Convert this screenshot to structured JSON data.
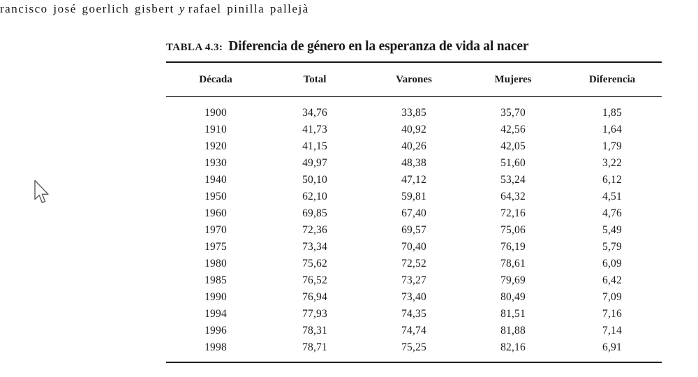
{
  "page": {
    "header": {
      "author_left": "rancisco josé goerlich gisbert",
      "separator": "y",
      "author_right": "rafael pinilla pallejà"
    }
  },
  "table": {
    "label": "TABLA 4.3:",
    "title": "Diferencia de género en la esperanza de vida al nacer",
    "columns": [
      "Década",
      "Total",
      "Varones",
      "Mujeres",
      "Diferencia"
    ],
    "rows": [
      [
        "1900",
        "34,76",
        "33,85",
        "35,70",
        "1,85"
      ],
      [
        "1910",
        "41,73",
        "40,92",
        "42,56",
        "1,64"
      ],
      [
        "1920",
        "41,15",
        "40,26",
        "42,05",
        "1,79"
      ],
      [
        "1930",
        "49,97",
        "48,38",
        "51,60",
        "3,22"
      ],
      [
        "1940",
        "50,10",
        "47,12",
        "53,24",
        "6,12"
      ],
      [
        "1950",
        "62,10",
        "59,81",
        "64,32",
        "4,51"
      ],
      [
        "1960",
        "69,85",
        "67,40",
        "72,16",
        "4,76"
      ],
      [
        "1970",
        "72,36",
        "69,57",
        "75,06",
        "5,49"
      ],
      [
        "1975",
        "73,34",
        "70,40",
        "76,19",
        "5,79"
      ],
      [
        "1980",
        "75,62",
        "72,52",
        "78,61",
        "6,09"
      ],
      [
        "1985",
        "76,52",
        "73,27",
        "79,69",
        "6,42"
      ],
      [
        "1990",
        "76,94",
        "73,40",
        "80,49",
        "7,09"
      ],
      [
        "1994",
        "77,93",
        "74,35",
        "81,51",
        "7,16"
      ],
      [
        "1996",
        "78,31",
        "74,74",
        "81,88",
        "7,14"
      ],
      [
        "1998",
        "78,71",
        "75,25",
        "82,16",
        "6,91"
      ]
    ]
  },
  "cursor": {
    "type": "arrow-pointer"
  },
  "colors": {
    "background": "#ffffff",
    "text": "#1a1a1a",
    "rule": "#141414"
  }
}
